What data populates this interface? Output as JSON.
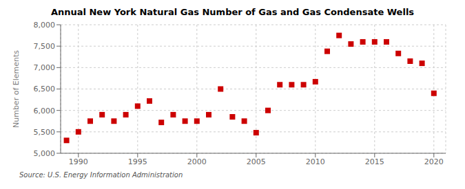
{
  "chart_data": {
    "type": "scatter",
    "title": "Annual New York Natural Gas Number of Gas and Gas Condensate Wells",
    "ylabel": "Number of Elements",
    "annotations": [
      "Source: U.S. Energy Information Administration"
    ],
    "x": [
      1989,
      1990,
      1991,
      1992,
      1993,
      1994,
      1995,
      1996,
      1997,
      1998,
      1999,
      2000,
      2001,
      2002,
      2003,
      2004,
      2005,
      2006,
      2007,
      2008,
      2009,
      2010,
      2011,
      2012,
      2013,
      2014,
      2015,
      2016,
      2017,
      2018,
      2019,
      2020
    ],
    "values": [
      5300,
      5500,
      5750,
      5900,
      5750,
      5900,
      6100,
      6220,
      5720,
      5900,
      5750,
      5750,
      5900,
      6500,
      5850,
      5750,
      5480,
      6000,
      6600,
      6600,
      6600,
      6670,
      7380,
      7750,
      7550,
      7600,
      7600,
      7600,
      7330,
      7150,
      7100,
      6400
    ],
    "color": "#cc0000",
    "marker": "square",
    "xlim": [
      1988.5,
      2021
    ],
    "ylim": [
      5000,
      8000
    ],
    "xticks": [
      1990,
      1995,
      2000,
      2005,
      2010,
      2015,
      2020
    ],
    "yticks": [
      {
        "value": 5000,
        "label": "5,000"
      },
      {
        "value": 5500,
        "label": "5,500"
      },
      {
        "value": 6000,
        "label": "6,000"
      },
      {
        "value": 6500,
        "label": "6,500"
      },
      {
        "value": 7000,
        "label": "7,000"
      },
      {
        "value": 7500,
        "label": "7,500"
      },
      {
        "value": 8000,
        "label": "8,000"
      }
    ],
    "grid": true
  }
}
